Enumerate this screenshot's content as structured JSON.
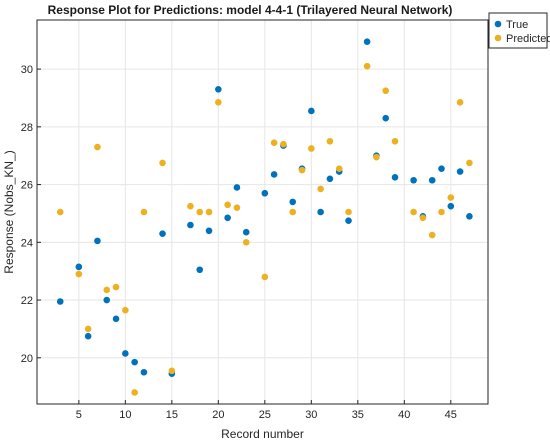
{
  "chart_data": {
    "type": "scatter",
    "title": "Response Plot for Predictions: model 4-4-1 (Trilayered Neural Network)",
    "xlabel": "Record number",
    "ylabel": "Response (Nobs_KN_)",
    "xlim": [
      0.5,
      49
    ],
    "ylim": [
      18.4,
      31.7
    ],
    "xticks": [
      5,
      10,
      15,
      20,
      25,
      30,
      35,
      40,
      45
    ],
    "yticks": [
      20,
      22,
      24,
      26,
      28,
      30
    ],
    "grid": true,
    "legend_position": "top-right",
    "series": [
      {
        "name": "True",
        "color": "#0072BD",
        "points": [
          [
            3,
            21.95
          ],
          [
            5,
            23.15
          ],
          [
            6,
            20.75
          ],
          [
            7,
            24.05
          ],
          [
            8,
            22.0
          ],
          [
            9,
            21.35
          ],
          [
            10,
            20.15
          ],
          [
            11,
            19.85
          ],
          [
            12,
            19.5
          ],
          [
            14,
            24.3
          ],
          [
            15,
            19.45
          ],
          [
            17,
            24.6
          ],
          [
            18,
            23.05
          ],
          [
            19,
            24.4
          ],
          [
            20,
            29.3
          ],
          [
            21,
            24.85
          ],
          [
            22,
            25.9
          ],
          [
            23,
            24.35
          ],
          [
            25,
            25.7
          ],
          [
            26,
            26.35
          ],
          [
            27,
            27.35
          ],
          [
            28,
            25.4
          ],
          [
            29,
            26.55
          ],
          [
            30,
            28.55
          ],
          [
            31,
            25.05
          ],
          [
            32,
            26.2
          ],
          [
            33,
            26.45
          ],
          [
            34,
            24.75
          ],
          [
            36,
            30.95
          ],
          [
            37,
            27.0
          ],
          [
            38,
            28.3
          ],
          [
            39,
            26.25
          ],
          [
            41,
            26.15
          ],
          [
            42,
            24.9
          ],
          [
            43,
            26.15
          ],
          [
            44,
            26.55
          ],
          [
            45,
            25.25
          ],
          [
            46,
            26.45
          ],
          [
            47,
            24.9
          ]
        ]
      },
      {
        "name": "Predicted",
        "color": "#EDB120",
        "points": [
          [
            3,
            25.05
          ],
          [
            5,
            22.9
          ],
          [
            6,
            21.0
          ],
          [
            7,
            27.3
          ],
          [
            8,
            22.35
          ],
          [
            9,
            22.45
          ],
          [
            10,
            21.65
          ],
          [
            11,
            18.8
          ],
          [
            12,
            25.05
          ],
          [
            14,
            26.75
          ],
          [
            15,
            19.55
          ],
          [
            17,
            25.25
          ],
          [
            18,
            25.05
          ],
          [
            19,
            25.05
          ],
          [
            20,
            28.85
          ],
          [
            21,
            25.3
          ],
          [
            22,
            25.2
          ],
          [
            23,
            24.0
          ],
          [
            25,
            22.8
          ],
          [
            26,
            27.45
          ],
          [
            27,
            27.4
          ],
          [
            28,
            25.05
          ],
          [
            29,
            26.5
          ],
          [
            30,
            27.25
          ],
          [
            31,
            25.85
          ],
          [
            32,
            27.5
          ],
          [
            33,
            26.55
          ],
          [
            34,
            25.05
          ],
          [
            36,
            30.1
          ],
          [
            37,
            26.95
          ],
          [
            38,
            29.25
          ],
          [
            39,
            27.5
          ],
          [
            41,
            25.05
          ],
          [
            42,
            24.85
          ],
          [
            43,
            24.25
          ],
          [
            44,
            25.05
          ],
          [
            45,
            25.55
          ],
          [
            46,
            28.85
          ],
          [
            47,
            26.75
          ]
        ]
      }
    ]
  }
}
